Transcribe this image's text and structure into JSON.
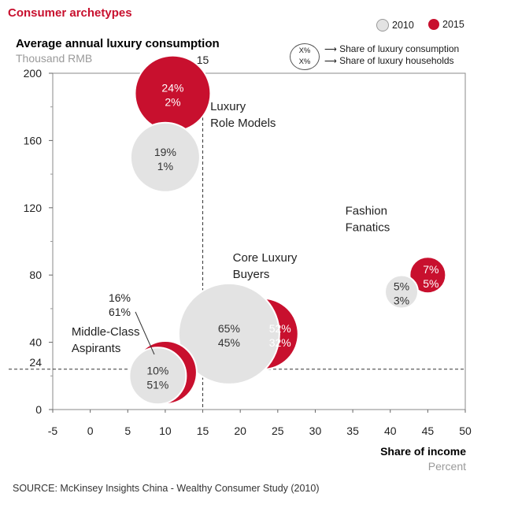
{
  "chart_data": {
    "type": "bubble",
    "title": "Consumer archetypes",
    "ylabel": "Average annual luxury consumption",
    "ylabel_unit": "Thousand RMB",
    "xlabel": "Share of income",
    "xlabel_unit": "Percent",
    "xlim": [
      -5,
      50
    ],
    "ylim": [
      0,
      200
    ],
    "x_ticks": [
      "-5",
      "0",
      "5",
      "10",
      "15",
      "20",
      "25",
      "30",
      "35",
      "40",
      "45",
      "50"
    ],
    "y_ticks": [
      "0",
      "40",
      "80",
      "120",
      "160",
      "200"
    ],
    "reference_lines": {
      "x": 15,
      "x_label": "15",
      "y": 24,
      "y_label": "24"
    },
    "legend": {
      "series": [
        {
          "name": "2010",
          "color": "#e3e3e3"
        },
        {
          "name": "2015",
          "color": "#c8102e"
        }
      ],
      "key_top": "X%",
      "key_bottom": "X%",
      "key_top_desc": "Share of luxury consumption",
      "key_bottom_desc": "Share of luxury households"
    },
    "bubbles": [
      {
        "group": "Luxury Role Models",
        "series": "2015",
        "x": 11,
        "y": 188,
        "r": 48,
        "consumption": "24%",
        "households": "2%"
      },
      {
        "group": "Luxury Role Models",
        "series": "2010",
        "x": 10,
        "y": 150,
        "r": 44,
        "consumption": "19%",
        "households": "1%"
      },
      {
        "group": "Core Luxury Buyers",
        "series": "2015",
        "x": 23,
        "y": 45,
        "r": 45,
        "consumption": "52%",
        "households": "32%"
      },
      {
        "group": "Core Luxury Buyers",
        "series": "2010",
        "x": 18.5,
        "y": 45,
        "r": 64,
        "consumption": "65%",
        "households": "45%"
      },
      {
        "group": "Middle-Class Aspirants",
        "series": "2015",
        "x": 10,
        "y": 22,
        "r": 40,
        "consumption": "16%",
        "households": "61%"
      },
      {
        "group": "Middle-Class Aspirants",
        "series": "2010",
        "x": 9,
        "y": 20,
        "r": 36,
        "consumption": "10%",
        "households": "51%"
      },
      {
        "group": "Fashion Fanatics",
        "series": "2015",
        "x": 45,
        "y": 80,
        "r": 23,
        "consumption": "7%",
        "households": "5%"
      },
      {
        "group": "Fashion Fanatics",
        "series": "2010",
        "x": 41.5,
        "y": 70,
        "r": 21,
        "consumption": "5%",
        "households": "3%"
      }
    ],
    "group_labels": [
      {
        "text": [
          "Luxury",
          "Role Models"
        ],
        "x": 16,
        "y": 178
      },
      {
        "text": [
          "Core Luxury",
          "Buyers"
        ],
        "x": 19,
        "y": 88
      },
      {
        "text": [
          "Middle-Class",
          "Aspirants"
        ],
        "x": -2.5,
        "y": 44
      },
      {
        "text": [
          "Fashion",
          "Fanatics"
        ],
        "x": 34,
        "y": 116
      }
    ],
    "outside_label": {
      "consumption": "16%",
      "households": "61%"
    }
  },
  "source": "SOURCE: McKinsey Insights China - Wealthy Consumer Study (2010)"
}
